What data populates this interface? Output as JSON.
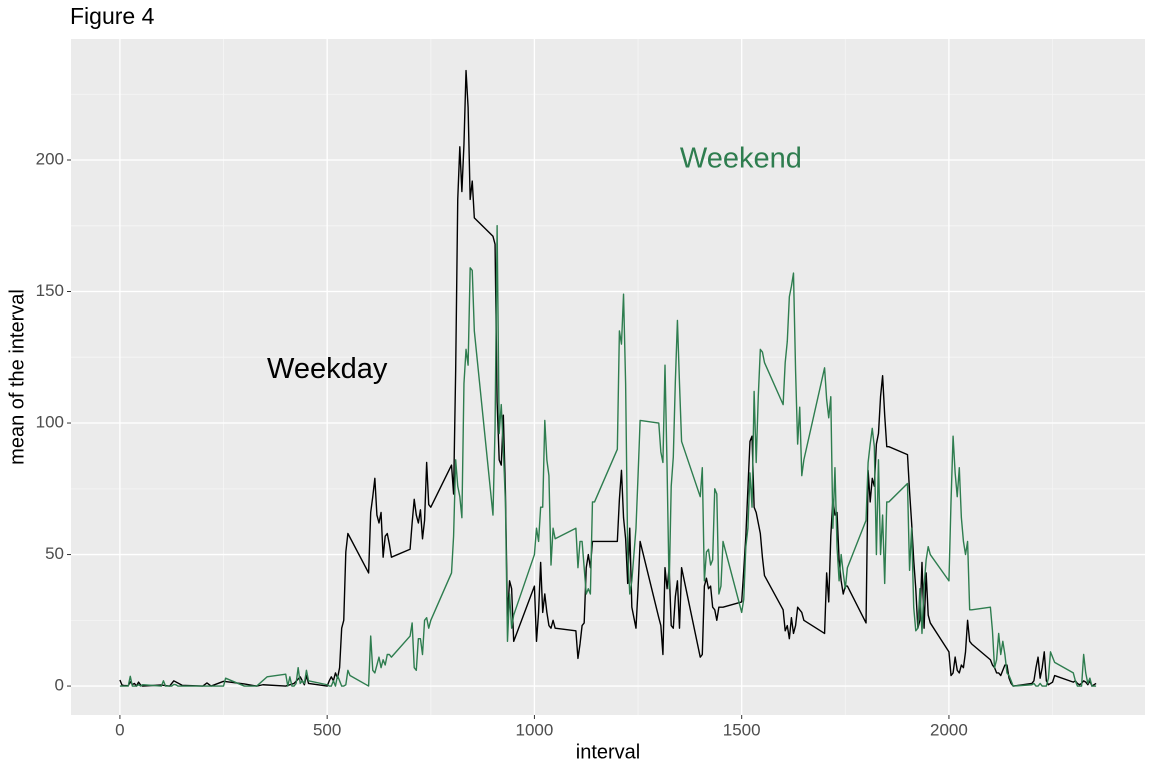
{
  "chart_data": {
    "type": "line",
    "title": "Figure 4",
    "x_label": "interval",
    "y_label": "mean of the interval",
    "xlim": [
      -118,
      2473
    ],
    "ylim": [
      -11,
      246
    ],
    "xticks": [
      0,
      500,
      1000,
      1500,
      2000
    ],
    "yticks": [
      0,
      50,
      100,
      150,
      200
    ],
    "grid": true,
    "annotations": [
      {
        "text": "Weekday",
        "x": 500,
        "y": 120,
        "color": "#000000"
      },
      {
        "text": "Weekend",
        "x": 1498,
        "y": 200,
        "color": "#2e7d4f"
      }
    ],
    "series": [
      {
        "color": "#000000",
        "x": [
          0,
          5,
          10,
          15,
          20,
          25,
          30,
          35,
          40,
          45,
          50,
          55,
          100,
          120,
          130,
          150,
          200,
          210,
          220,
          250,
          300,
          330,
          345,
          400,
          420,
          435,
          445,
          450,
          455,
          500,
          505,
          510,
          515,
          520,
          525,
          530,
          535,
          540,
          545,
          550,
          600,
          605,
          610,
          615,
          620,
          625,
          630,
          635,
          640,
          645,
          650,
          655,
          700,
          705,
          710,
          715,
          720,
          725,
          730,
          735,
          740,
          745,
          750,
          800,
          805,
          810,
          815,
          820,
          825,
          830,
          835,
          840,
          845,
          850,
          855,
          900,
          905,
          910,
          915,
          920,
          925,
          930,
          935,
          940,
          945,
          950,
          1000,
          1005,
          1010,
          1015,
          1020,
          1025,
          1030,
          1035,
          1040,
          1045,
          1050,
          1100,
          1105,
          1110,
          1115,
          1120,
          1125,
          1130,
          1135,
          1140,
          1145,
          1200,
          1205,
          1210,
          1215,
          1220,
          1225,
          1230,
          1235,
          1240,
          1245,
          1250,
          1255,
          1300,
          1305,
          1310,
          1315,
          1320,
          1325,
          1330,
          1335,
          1340,
          1345,
          1350,
          1355,
          1400,
          1405,
          1410,
          1415,
          1420,
          1425,
          1430,
          1435,
          1440,
          1445,
          1450,
          1455,
          1500,
          1505,
          1510,
          1515,
          1520,
          1525,
          1530,
          1535,
          1540,
          1545,
          1550,
          1555,
          1600,
          1605,
          1610,
          1615,
          1620,
          1625,
          1630,
          1635,
          1640,
          1645,
          1650,
          1700,
          1705,
          1710,
          1715,
          1720,
          1725,
          1730,
          1735,
          1740,
          1745,
          1750,
          1755,
          1800,
          1805,
          1810,
          1815,
          1820,
          1825,
          1830,
          1835,
          1840,
          1845,
          1850,
          1855,
          1900,
          1905,
          1910,
          1915,
          1920,
          1925,
          1930,
          1935,
          1940,
          1945,
          1950,
          1955,
          2000,
          2005,
          2010,
          2015,
          2020,
          2025,
          2030,
          2035,
          2040,
          2045,
          2050,
          2055,
          2100,
          2105,
          2110,
          2115,
          2120,
          2125,
          2130,
          2135,
          2140,
          2145,
          2150,
          2155,
          2200,
          2205,
          2210,
          2215,
          2220,
          2225,
          2230,
          2235,
          2240,
          2245,
          2250,
          2255,
          2300,
          2305,
          2310,
          2315,
          2320,
          2325,
          2330,
          2335,
          2340,
          2345,
          2350,
          2355
        ],
        "values": [
          2.3,
          0.4,
          0.2,
          0.2,
          0.1,
          1.6,
          0.6,
          1,
          0,
          1.5,
          0.4,
          0,
          0.4,
          0,
          2,
          0.3,
          0,
          1.2,
          0,
          1.8,
          0.8,
          0,
          0.5,
          0,
          1,
          3.5,
          0.5,
          4,
          1,
          0,
          2,
          3.5,
          2,
          5,
          3,
          7,
          22,
          25,
          51,
          58,
          43,
          66,
          72,
          79,
          65,
          62,
          66,
          49,
          57,
          58,
          54,
          49,
          52,
          62,
          71,
          65,
          62,
          67,
          56,
          63,
          85,
          69,
          68,
          84,
          73,
          120,
          185,
          205,
          188,
          206,
          234,
          220,
          185,
          192,
          178,
          171,
          168,
          108,
          86,
          84,
          103,
          74,
          26,
          40,
          37,
          17,
          38,
          17,
          28,
          47,
          28,
          35,
          28,
          23,
          22,
          25,
          22,
          21,
          10.5,
          16,
          23,
          24,
          45,
          50,
          45,
          55,
          55,
          55,
          71,
          82,
          64,
          56,
          39,
          60,
          30,
          26,
          22,
          37,
          55,
          26,
          23,
          12,
          45,
          37,
          45,
          23,
          22,
          34,
          40,
          22,
          45,
          11,
          12,
          38,
          41,
          37,
          38,
          30,
          29,
          25,
          30,
          30,
          30,
          32,
          44,
          57,
          75,
          93,
          95,
          68,
          66,
          62,
          58,
          49,
          42,
          29,
          21,
          23,
          18,
          26,
          20,
          23,
          30,
          29,
          28,
          25,
          20,
          43,
          32,
          57,
          71,
          65,
          66,
          48,
          40,
          35,
          38,
          38,
          24,
          82,
          70,
          79,
          76,
          92,
          96,
          110,
          118,
          103,
          91,
          91,
          88,
          74,
          62,
          48,
          37,
          22,
          25,
          47,
          22,
          43,
          27,
          24,
          13,
          4,
          5,
          11,
          6,
          5,
          8,
          7,
          13,
          25,
          17,
          16,
          10,
          8,
          7,
          5,
          5,
          4,
          6,
          8,
          8,
          3,
          1,
          0,
          1,
          2,
          7,
          11,
          3,
          7,
          13,
          2,
          0.5,
          1,
          1.5,
          4,
          1.5,
          2,
          1,
          0.5,
          1,
          2,
          1.5,
          0.5,
          2,
          0,
          0.5,
          1
        ]
      },
      {
        "color": "#2e7d4f",
        "x": [
          0,
          10,
          15,
          20,
          25,
          30,
          35,
          40,
          45,
          50,
          55,
          100,
          105,
          110,
          115,
          120,
          125,
          130,
          135,
          140,
          150,
          200,
          250,
          255,
          300,
          330,
          355,
          400,
          405,
          410,
          415,
          420,
          425,
          430,
          435,
          440,
          445,
          450,
          455,
          500,
          505,
          510,
          515,
          520,
          525,
          530,
          535,
          540,
          545,
          550,
          555,
          600,
          605,
          610,
          615,
          620,
          625,
          630,
          635,
          640,
          645,
          650,
          655,
          700,
          705,
          710,
          715,
          720,
          725,
          730,
          735,
          740,
          745,
          750,
          800,
          805,
          810,
          815,
          820,
          825,
          830,
          835,
          840,
          845,
          850,
          855,
          900,
          905,
          910,
          915,
          920,
          925,
          930,
          935,
          940,
          945,
          950,
          1000,
          1005,
          1010,
          1015,
          1020,
          1025,
          1030,
          1035,
          1040,
          1045,
          1050,
          1100,
          1105,
          1110,
          1115,
          1120,
          1125,
          1130,
          1135,
          1140,
          1145,
          1200,
          1205,
          1210,
          1215,
          1220,
          1225,
          1230,
          1235,
          1240,
          1245,
          1250,
          1255,
          1300,
          1305,
          1310,
          1315,
          1320,
          1325,
          1330,
          1335,
          1340,
          1345,
          1350,
          1355,
          1400,
          1405,
          1410,
          1415,
          1420,
          1425,
          1430,
          1435,
          1440,
          1445,
          1450,
          1455,
          1500,
          1505,
          1510,
          1515,
          1520,
          1525,
          1530,
          1535,
          1540,
          1545,
          1550,
          1555,
          1600,
          1605,
          1610,
          1615,
          1620,
          1625,
          1630,
          1635,
          1640,
          1645,
          1650,
          1700,
          1705,
          1710,
          1715,
          1720,
          1725,
          1730,
          1735,
          1740,
          1745,
          1750,
          1755,
          1800,
          1805,
          1810,
          1815,
          1820,
          1825,
          1830,
          1835,
          1840,
          1845,
          1850,
          1855,
          1900,
          1905,
          1910,
          1915,
          1920,
          1925,
          1930,
          1935,
          1940,
          1945,
          1950,
          1955,
          2000,
          2005,
          2010,
          2015,
          2020,
          2025,
          2030,
          2035,
          2040,
          2045,
          2050,
          2055,
          2100,
          2105,
          2110,
          2115,
          2120,
          2125,
          2130,
          2135,
          2140,
          2145,
          2150,
          2155,
          2200,
          2205,
          2210,
          2215,
          2220,
          2225,
          2230,
          2235,
          2240,
          2245,
          2250,
          2255,
          2300,
          2305,
          2310,
          2315,
          2320,
          2325,
          2330,
          2335,
          2340,
          2345,
          2350,
          2355
        ],
        "values": [
          0,
          0,
          0,
          0,
          3.7,
          0,
          0,
          0,
          0.5,
          0,
          0.5,
          0,
          2,
          0,
          0,
          0,
          0,
          0.6,
          0.5,
          0,
          0,
          0,
          0,
          3,
          0,
          0,
          3.5,
          4.5,
          0,
          3.5,
          0,
          0,
          1,
          7,
          1,
          2,
          1,
          6,
          2,
          0.5,
          0,
          0,
          2,
          0,
          4,
          2,
          0,
          0,
          0.5,
          6,
          4,
          0,
          19,
          6,
          5,
          8,
          11,
          7,
          10,
          8,
          12,
          12,
          11,
          19,
          24,
          7,
          6,
          18,
          18,
          12,
          25,
          26,
          22,
          25,
          43,
          57,
          86,
          76,
          72,
          64,
          115,
          128,
          122,
          159,
          158,
          135,
          65,
          98,
          175,
          96,
          107,
          90,
          70,
          17,
          35,
          22,
          27,
          50,
          60,
          55,
          68,
          68,
          101,
          86,
          80,
          46,
          60,
          56,
          60,
          45,
          55,
          55,
          45,
          35,
          37,
          35,
          70,
          70,
          90,
          135,
          130,
          149,
          115,
          51,
          35,
          40,
          50,
          60,
          80,
          101,
          100,
          89,
          85,
          122,
          83,
          37,
          76,
          87,
          116,
          139,
          115,
          93,
          72,
          83,
          40,
          51,
          52,
          46,
          48,
          75,
          73,
          35,
          38,
          55,
          28,
          33,
          53,
          60,
          81,
          68,
          112,
          85,
          110,
          128,
          127,
          123,
          107,
          123,
          131,
          148,
          152,
          157,
          120,
          92,
          106,
          80,
          86,
          121,
          109,
          102,
          110,
          60,
          83,
          53,
          40,
          50,
          43,
          37,
          45,
          63,
          85,
          92,
          98,
          91,
          50,
          86,
          50,
          65,
          39,
          70,
          70,
          77,
          44,
          60,
          30,
          21,
          22,
          37,
          20,
          38,
          48,
          53,
          50,
          40,
          70,
          95,
          81,
          72,
          83,
          64,
          55,
          50,
          55,
          29,
          29,
          30,
          21,
          7,
          10,
          20,
          12,
          17,
          12,
          5,
          4,
          2,
          0,
          0.5,
          1,
          0,
          0,
          1,
          0,
          0,
          0,
          3,
          13,
          11,
          9,
          5,
          2,
          0,
          0,
          0,
          12,
          5,
          1,
          3,
          0,
          0,
          0
        ]
      }
    ]
  }
}
